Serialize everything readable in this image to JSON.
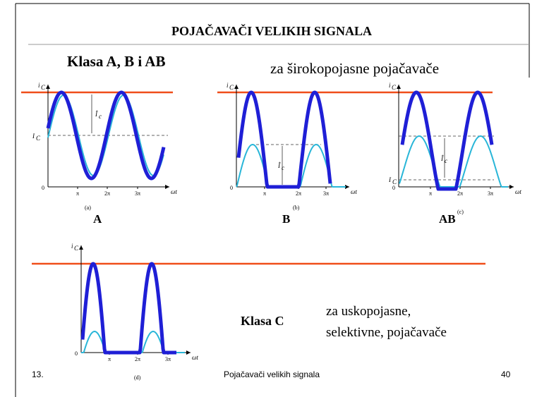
{
  "slide": {
    "title": "POJAČAVAČI VELIKIH SIGNALA",
    "heading": "Klasa A, B i AB",
    "note": "za širokopojasne pojačavače",
    "panels": [
      {
        "caption": "(a)",
        "label": "A"
      },
      {
        "caption": "(b)",
        "label": "B"
      },
      {
        "caption": "(c)",
        "label": "AB"
      },
      {
        "caption": "(d)"
      }
    ],
    "axis": {
      "y_label": "i",
      "y_sub": "C",
      "x_label": "ωt",
      "origin": "0",
      "ticks": [
        "π",
        "2π",
        "3π"
      ],
      "bias": "I",
      "bias_sub": "C",
      "amp": "Î",
      "amp_sub": "c"
    },
    "class_c": {
      "heading": "Klasa C",
      "lines": [
        "za uskopojasne,",
        "selektivne, pojačavače"
      ]
    },
    "footer": {
      "date": "13.",
      "center": "Pojačavači velikih signala",
      "page": "40"
    }
  }
}
